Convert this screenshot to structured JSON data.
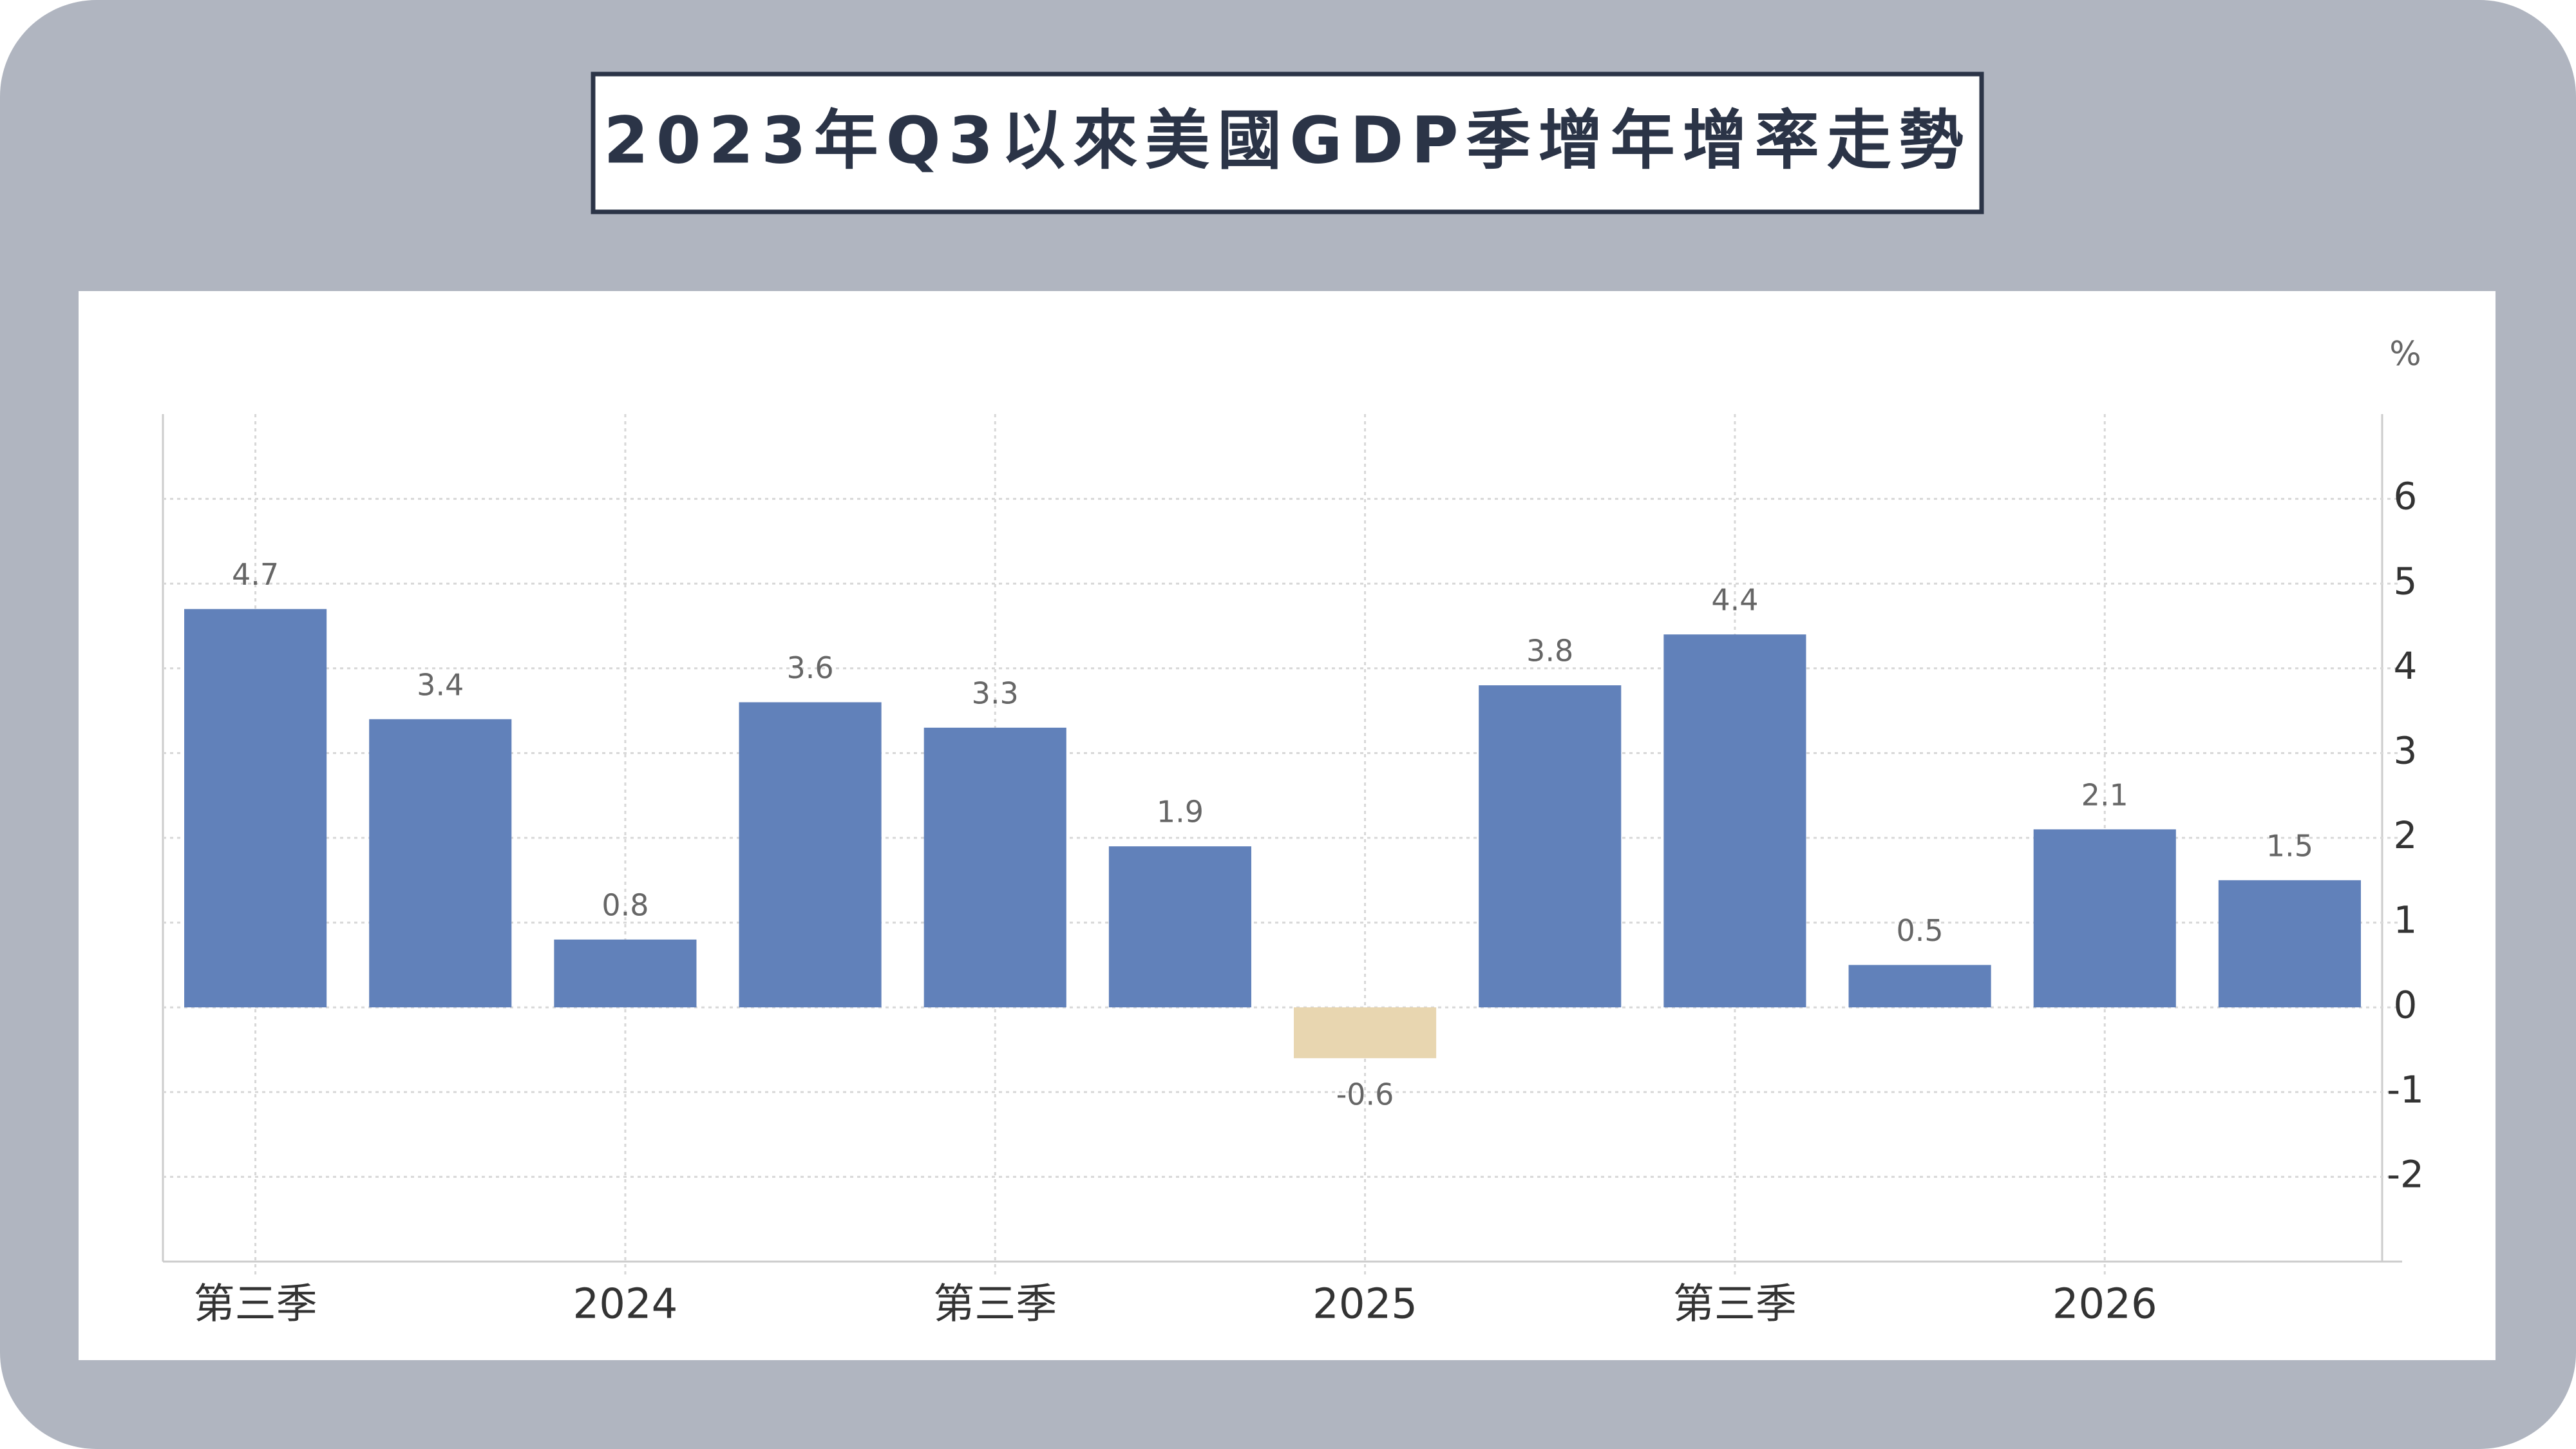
{
  "chart_data": {
    "type": "bar",
    "title": "2023年Q3以來美國GDP季增年增率走勢",
    "unit": "%",
    "categories": [
      "第三季",
      null,
      "2024",
      null,
      "第三季",
      null,
      "2025",
      null,
      "第三季",
      null,
      "2026",
      null
    ],
    "values": [
      4.7,
      3.4,
      0.8,
      3.6,
      3.3,
      1.9,
      -0.6,
      3.8,
      4.4,
      0.5,
      2.1,
      1.5
    ],
    "color": "#6181ba",
    "negative_color": "#e8d6b0",
    "ylim": [
      -3,
      7
    ],
    "yticks": [
      -2,
      -1,
      0,
      1,
      2,
      3,
      4,
      5,
      6
    ],
    "grid": true
  }
}
